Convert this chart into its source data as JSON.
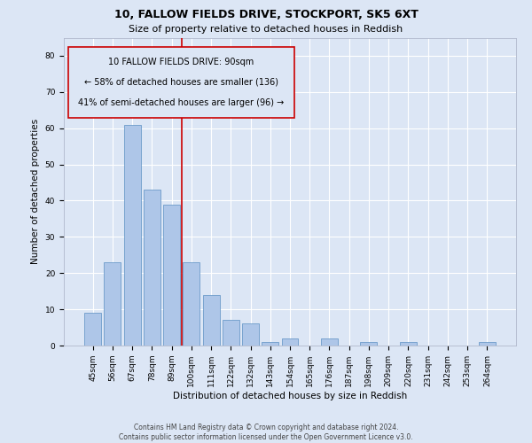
{
  "title": "10, FALLOW FIELDS DRIVE, STOCKPORT, SK5 6XT",
  "subtitle": "Size of property relative to detached houses in Reddish",
  "xlabel": "Distribution of detached houses by size in Reddish",
  "ylabel": "Number of detached properties",
  "categories": [
    "45sqm",
    "56sqm",
    "67sqm",
    "78sqm",
    "89sqm",
    "100sqm",
    "111sqm",
    "122sqm",
    "132sqm",
    "143sqm",
    "154sqm",
    "165sqm",
    "176sqm",
    "187sqm",
    "198sqm",
    "209sqm",
    "220sqm",
    "231sqm",
    "242sqm",
    "253sqm",
    "264sqm"
  ],
  "values": [
    9,
    23,
    61,
    43,
    39,
    23,
    14,
    7,
    6,
    1,
    2,
    0,
    2,
    0,
    1,
    0,
    1,
    0,
    0,
    0,
    1
  ],
  "bar_color": "#aec6e8",
  "bar_edge_color": "#5a8fc2",
  "background_color": "#dce6f5",
  "grid_color": "#ffffff",
  "vline_x": 4.5,
  "vline_color": "#cc0000",
  "annotation_title": "10 FALLOW FIELDS DRIVE: 90sqm",
  "annotation_line1": "← 58% of detached houses are smaller (136)",
  "annotation_line2": "41% of semi-detached houses are larger (96) →",
  "annotation_box_color": "#cc0000",
  "ylim": [
    0,
    85
  ],
  "yticks": [
    0,
    10,
    20,
    30,
    40,
    50,
    60,
    70,
    80
  ],
  "footer": "Contains HM Land Registry data © Crown copyright and database right 2024.\nContains public sector information licensed under the Open Government Licence v3.0.",
  "title_fontsize": 9,
  "subtitle_fontsize": 8,
  "annotation_fontsize": 7,
  "tick_fontsize": 6.5,
  "ylabel_fontsize": 7.5,
  "xlabel_fontsize": 7.5,
  "footer_fontsize": 5.5
}
